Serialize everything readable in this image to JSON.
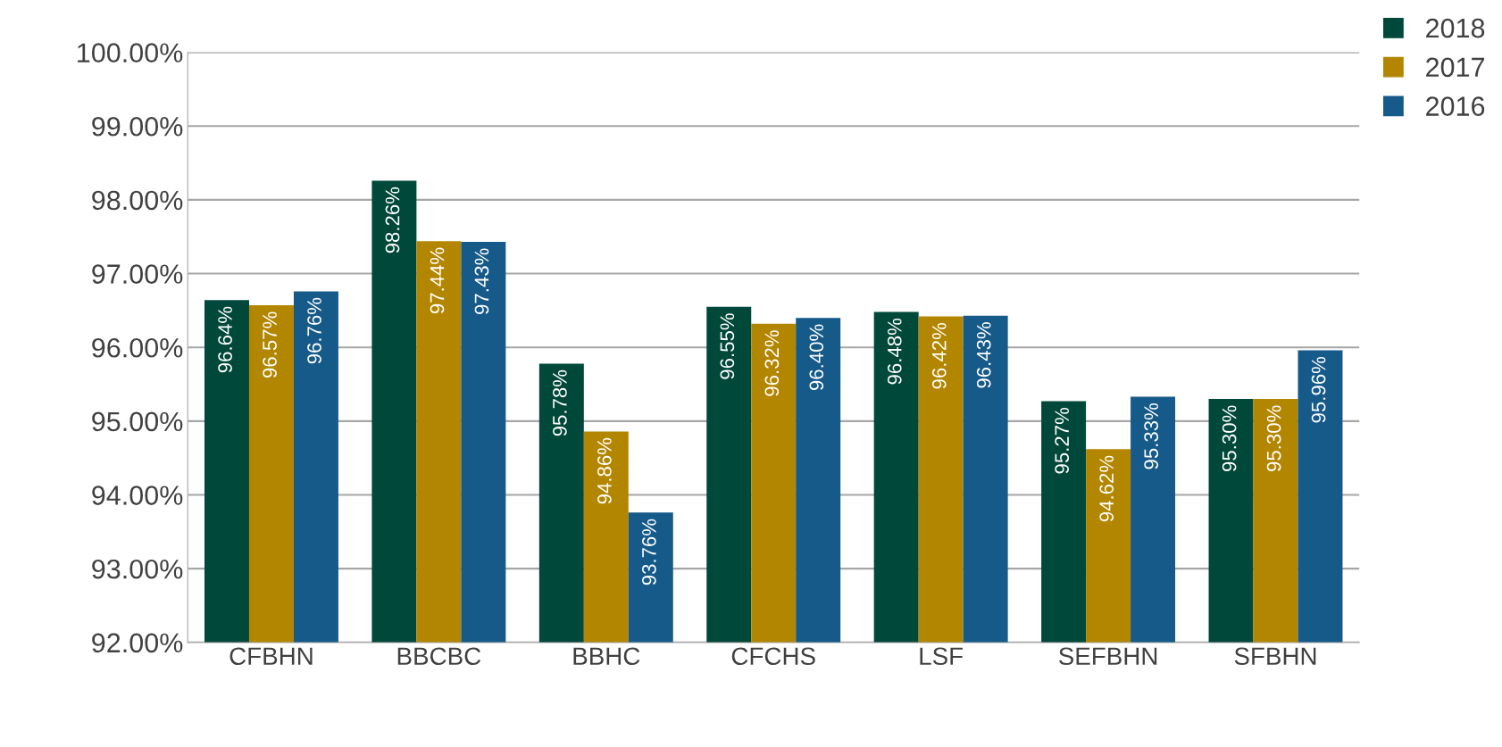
{
  "chart_data": {
    "type": "bar",
    "categories": [
      "CFBHN",
      "BBCBC",
      "BBHC",
      "CFCHS",
      "LSF",
      "SEFBHN",
      "SFBHN"
    ],
    "series": [
      {
        "name": "2018",
        "color": "#00483a",
        "values": [
          96.64,
          98.26,
          95.78,
          96.55,
          96.48,
          95.27,
          95.3
        ],
        "value_labels": [
          "96.64%",
          "98.26%",
          "95.78%",
          "96.55%",
          "96.48%",
          "95.27%",
          "95.30%"
        ]
      },
      {
        "name": "2017",
        "color": "#b38600",
        "values": [
          96.57,
          97.44,
          94.86,
          96.32,
          96.42,
          94.62,
          95.3
        ],
        "value_labels": [
          "96.57%",
          "97.44%",
          "94.86%",
          "96.32%",
          "96.42%",
          "94.62%",
          "95.30%"
        ]
      },
      {
        "name": "2016",
        "color": "#165a8a",
        "values": [
          96.76,
          97.43,
          93.76,
          96.4,
          96.43,
          95.33,
          95.96
        ],
        "value_labels": [
          "96.76%",
          "97.43%",
          "93.76%",
          "96.40%",
          "96.43%",
          "95.33%",
          "95.96%"
        ]
      }
    ],
    "ylim": [
      92,
      100
    ],
    "yticks": [
      {
        "value": 92,
        "label": "92.00%"
      },
      {
        "value": 93,
        "label": "93.00%"
      },
      {
        "value": 94,
        "label": "94.00%"
      },
      {
        "value": 95,
        "label": "95.00%"
      },
      {
        "value": 96,
        "label": "96.00%"
      },
      {
        "value": 97,
        "label": "97.00%"
      },
      {
        "value": 98,
        "label": "98.00%"
      },
      {
        "value": 99,
        "label": "99.00%"
      },
      {
        "value": 100,
        "label": "100.00%"
      }
    ],
    "grid": "y",
    "legend": "top right"
  }
}
